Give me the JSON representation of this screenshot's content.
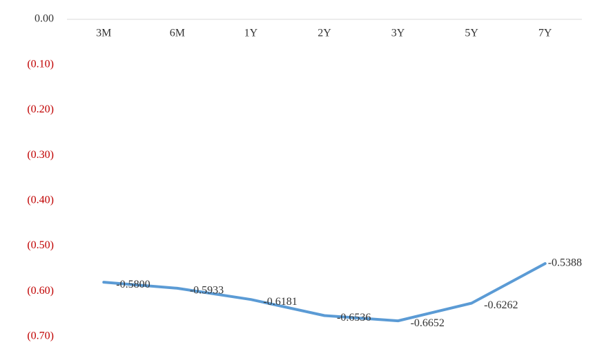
{
  "chart_data": {
    "type": "line",
    "categories": [
      "3M",
      "6M",
      "1Y",
      "2Y",
      "3Y",
      "5Y",
      "7Y"
    ],
    "series": [
      {
        "color": "#5b9bd5",
        "values": [
          -0.58,
          -0.5933,
          -0.6181,
          -0.6536,
          -0.6652,
          -0.6262,
          -0.5388
        ],
        "value_labels": [
          "-0.5800",
          "-0.5933",
          "-0.6181",
          "-0.6536",
          "-0.6652",
          "-0.6262",
          "-0.5388"
        ]
      }
    ],
    "ylim": [
      -0.7,
      0
    ],
    "yticks": [
      {
        "value": 0,
        "label": "0.00"
      },
      {
        "value": -0.1,
        "label": "(0.10)"
      },
      {
        "value": -0.2,
        "label": "(0.20)"
      },
      {
        "value": -0.3,
        "label": "(0.30)"
      },
      {
        "value": -0.4,
        "label": "(0.40)"
      },
      {
        "value": -0.5,
        "label": "(0.50)"
      },
      {
        "value": -0.6,
        "label": "(0.60)"
      },
      {
        "value": -0.7,
        "label": "(0.70)"
      }
    ],
    "tick_color": "#333333",
    "negative_tick_color": "#c00000",
    "grid": false
  }
}
